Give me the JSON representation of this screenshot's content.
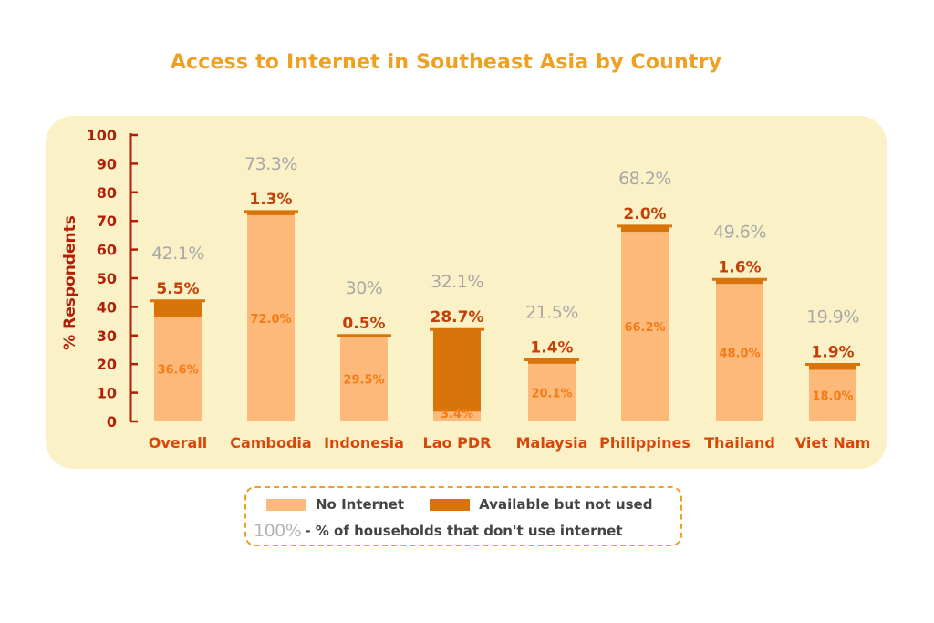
{
  "colors": {
    "title": "#f0a020",
    "panel": "#fbf1c7",
    "axis": "#b31f06",
    "no_internet": "#fdb97a",
    "available_not_used": "#d9740b",
    "top_label": "#c43f08",
    "inner_label": "#f47b16",
    "total_label": "#a8a8a8",
    "category": "#d9460a"
  },
  "chart_data": {
    "type": "bar",
    "stacked": true,
    "title": "Access to Internet in Southeast Asia by Country",
    "ylabel": "% Respondents",
    "xlabel": "",
    "ylim": [
      0,
      100
    ],
    "yticks": [
      "0",
      "10",
      "20",
      "30",
      "40",
      "50",
      "60",
      "70",
      "80",
      "90",
      "100"
    ],
    "grid": false,
    "legend_position": "bottom",
    "categories": [
      "Overall",
      "Cambodia",
      "Indonesia",
      "Lao PDR",
      "Malaysia",
      "Philippines",
      "Thailand",
      "Viet Nam"
    ],
    "series": [
      {
        "name": "No Internet",
        "values": [
          36.6,
          72.0,
          29.5,
          3.4,
          20.1,
          66.2,
          48.0,
          18.0
        ],
        "labels": [
          "36.6%",
          "72.0%",
          "29.5%",
          "3.4%",
          "20.1%",
          "66.2%",
          "48.0%",
          "18.0%"
        ]
      },
      {
        "name": "Available but not used",
        "values": [
          5.5,
          1.3,
          0.5,
          28.7,
          1.4,
          2.0,
          1.6,
          1.9
        ],
        "labels": [
          "5.5%",
          "1.3%",
          "0.5%",
          "28.7%",
          "1.4%",
          "2.0%",
          "1.6%",
          "1.9%"
        ]
      }
    ],
    "totals": [
      "42.1%",
      "73.3%",
      "30%",
      "32.1%",
      "21.5%",
      "68.2%",
      "49.6%",
      "19.9%"
    ]
  },
  "legend": {
    "no_internet": "No Internet",
    "available": "Available but not used",
    "example": "100%",
    "explanation": "- % of households that don't use internet"
  }
}
